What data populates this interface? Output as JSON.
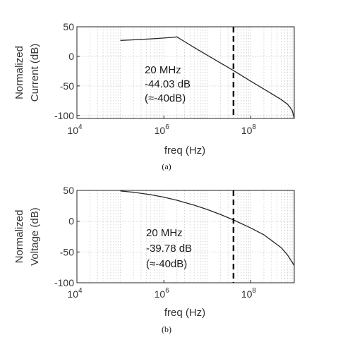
{
  "chart_data": [
    {
      "type": "line",
      "panel_caption": "(a)",
      "xlabel": "freq (Hz)",
      "ylabel_lines": [
        "Normalized",
        "Current (dB)"
      ],
      "xscale": "log",
      "xlim": [
        10000,
        1000000000
      ],
      "ylim": [
        -105,
        50
      ],
      "xticks": [
        {
          "base": "10",
          "exp": "4",
          "value": 10000
        },
        {
          "base": "10",
          "exp": "6",
          "value": 1000000
        },
        {
          "base": "10",
          "exp": "8",
          "value": 100000000
        }
      ],
      "yticks": [
        "50",
        "0",
        "-50",
        "-100"
      ],
      "ytick_values": [
        50,
        0,
        -50,
        -100
      ],
      "grid": true,
      "series": [
        {
          "x": [
            100000,
            200000,
            500000,
            1000000,
            1500000,
            2000000,
            3000000,
            5000000,
            10000000,
            20000000,
            40000000,
            100000000,
            300000000,
            500000000,
            700000000,
            800000000,
            900000000,
            1000000000
          ],
          "y": [
            27,
            28,
            29.5,
            31,
            32,
            33,
            25,
            15,
            2,
            -11,
            -24,
            -42,
            -63,
            -73,
            -81,
            -86,
            -92,
            -105
          ]
        }
      ],
      "marker_x": 40000000,
      "annotation": [
        "20 MHz",
        "-44.03 dB",
        "(≈-40dB)"
      ]
    },
    {
      "type": "line",
      "panel_caption": "(b)",
      "xlabel": "freq (Hz)",
      "ylabel_lines": [
        "Normalized",
        "Voltage (dB)"
      ],
      "xscale": "log",
      "xlim": [
        10000,
        1000000000
      ],
      "ylim": [
        -100,
        50
      ],
      "xticks": [
        {
          "base": "10",
          "exp": "4",
          "value": 10000
        },
        {
          "base": "10",
          "exp": "6",
          "value": 1000000
        },
        {
          "base": "10",
          "exp": "8",
          "value": 100000000
        }
      ],
      "yticks": [
        "50",
        "0",
        "-50",
        "-100"
      ],
      "ytick_values": [
        50,
        0,
        -50,
        -100
      ],
      "grid": true,
      "series": [
        {
          "x": [
            100000,
            200000,
            500000,
            1000000,
            2000000,
            5000000,
            10000000,
            20000000,
            40000000,
            100000000,
            200000000,
            500000000,
            700000000,
            1000000000
          ],
          "y": [
            49,
            47,
            43,
            39,
            34,
            26,
            19,
            11,
            2,
            -11,
            -22,
            -43,
            -55,
            -72
          ]
        }
      ],
      "marker_x": 40000000,
      "annotation": [
        "20 MHz",
        "-39.78 dB",
        "(≈-40dB)"
      ]
    }
  ]
}
